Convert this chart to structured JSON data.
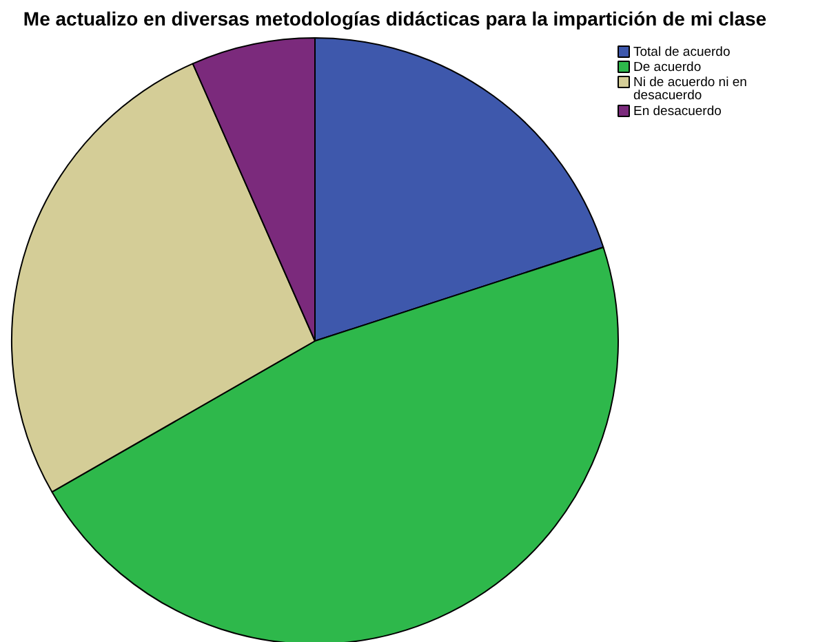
{
  "chart_data": {
    "type": "pie",
    "title": "Me actualizo en diversas metodologías didácticas para la impartición de mi clase",
    "categories": [
      "Total de acuerdo",
      "De acuerdo",
      "Ni de acuerdo ni en desacuerdo",
      "En desacuerdo"
    ],
    "values": [
      20,
      46.7,
      26.7,
      6.6
    ],
    "colors": [
      "#3e58ac",
      "#2eb84b",
      "#d4cd97",
      "#7b2a7c"
    ],
    "legend": "top right"
  }
}
